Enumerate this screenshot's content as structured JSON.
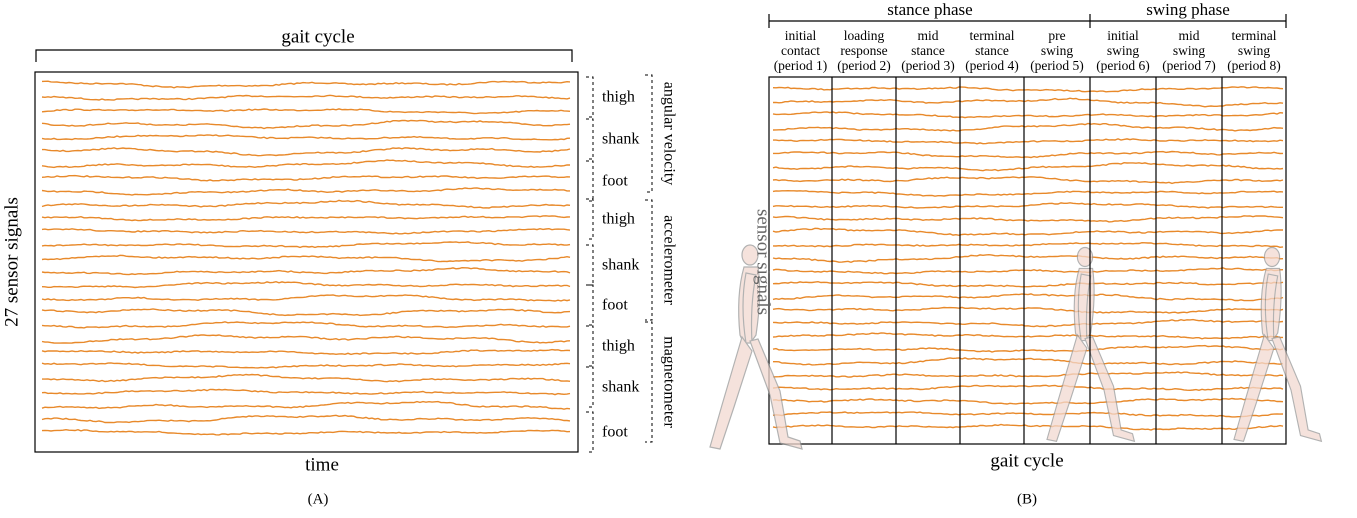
{
  "panel_a": {
    "top_label": "gait cycle",
    "y_label": "27 sensor signals",
    "x_label": "time",
    "caption": "(A)",
    "segments": [
      "thigh",
      "shank",
      "foot",
      "thigh",
      "shank",
      "foot",
      "thigh",
      "shank",
      "foot"
    ],
    "groups": [
      "angular velocity",
      "accelerometer",
      "magnetometer"
    ]
  },
  "panel_b": {
    "phases": [
      "stance phase",
      "swing phase"
    ],
    "periods": [
      [
        "initial",
        "contact",
        "(period 1)"
      ],
      [
        "loading",
        "response",
        "(period 2)"
      ],
      [
        "mid",
        "stance",
        "(period 3)"
      ],
      [
        "terminal",
        "stance",
        "(period 4)"
      ],
      [
        "pre",
        "swing",
        "(period 5)"
      ],
      [
        "initial",
        "swing",
        "(period 6)"
      ],
      [
        "mid",
        "swing",
        "(period 7)"
      ],
      [
        "terminal",
        "swing",
        "(period 8)"
      ]
    ],
    "y_label": "sensor signals",
    "x_label": "gait cycle",
    "caption": "(B)"
  }
}
